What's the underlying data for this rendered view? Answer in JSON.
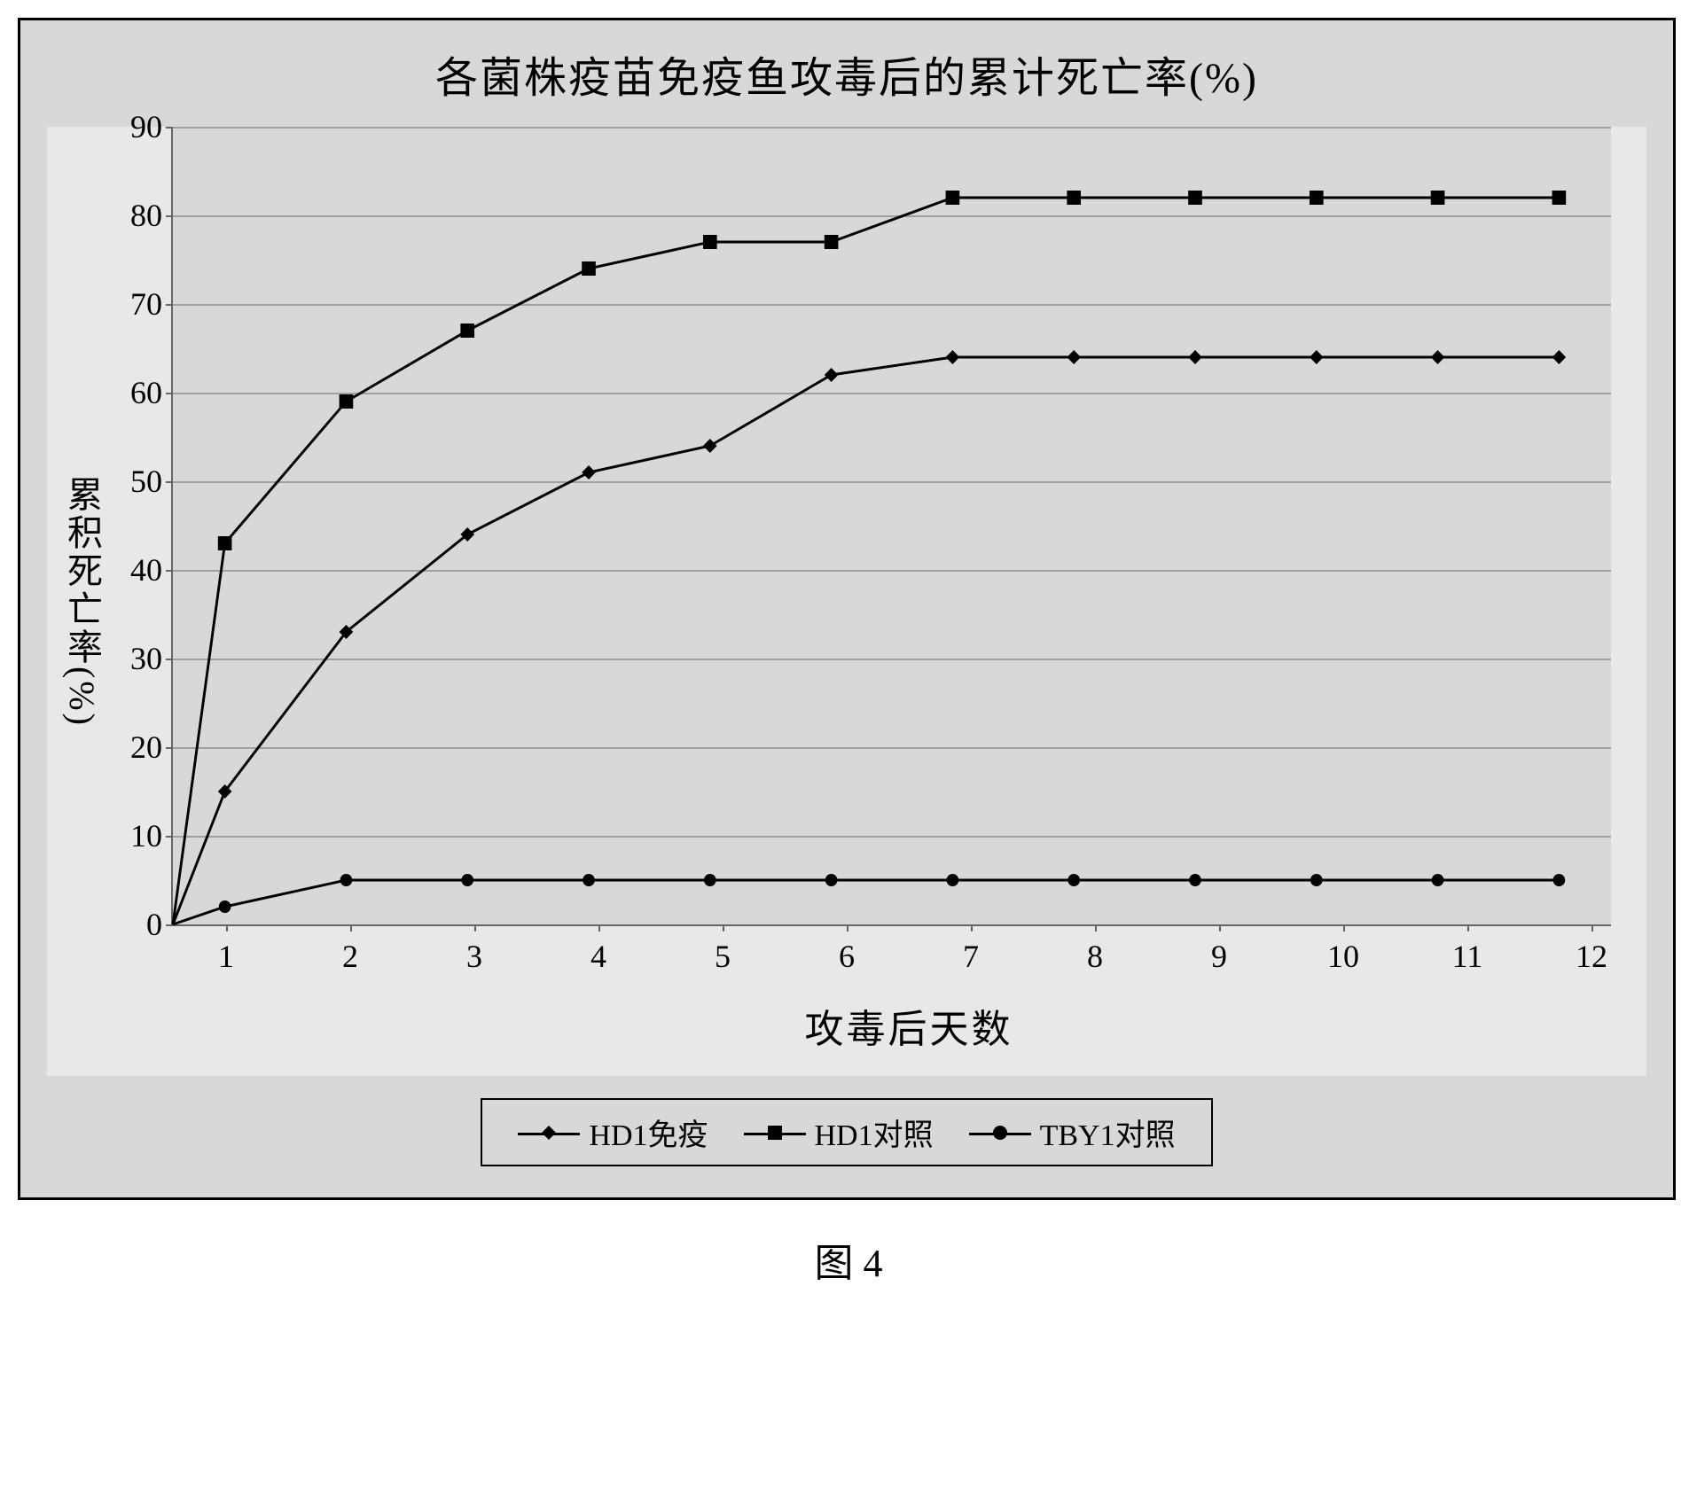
{
  "chart": {
    "type": "line",
    "title": "各菌株疫苗免疫鱼攻毒后的累计死亡率(%)",
    "x_axis_label": "攻毒后天数",
    "y_axis_label": "累积死亡率(%)",
    "ylim": [
      0,
      90
    ],
    "ytick_step": 10,
    "yticks": [
      0,
      10,
      20,
      30,
      40,
      50,
      60,
      70,
      80,
      90
    ],
    "xticks": [
      1,
      2,
      3,
      4,
      5,
      6,
      7,
      8,
      9,
      10,
      11,
      12
    ],
    "background_color": "#d8d8d8",
    "grid_color": "#a0a0a0",
    "axis_color": "#666666",
    "title_fontsize": 48,
    "label_fontsize": 40,
    "tick_fontsize": 36,
    "series": [
      {
        "name": "HD1免疫",
        "marker": "diamond",
        "color": "#000000",
        "line_width": 3,
        "marker_size": 16,
        "values": [
          15,
          33,
          44,
          51,
          54,
          62,
          64,
          64,
          64,
          64,
          64,
          64
        ]
      },
      {
        "name": "HD1对照",
        "marker": "square",
        "color": "#000000",
        "line_width": 3,
        "marker_size": 16,
        "values": [
          43,
          59,
          67,
          74,
          77,
          77,
          82,
          82,
          82,
          82,
          82,
          82
        ]
      },
      {
        "name": "TBY1对照",
        "marker": "circle",
        "color": "#000000",
        "line_width": 3,
        "marker_size": 14,
        "values": [
          2,
          5,
          5,
          5,
          5,
          5,
          5,
          5,
          5,
          5,
          5,
          5
        ]
      }
    ],
    "legend": {
      "items": [
        "HD1免疫",
        "HD1对照",
        "TBY1对照"
      ],
      "markers": [
        "diamond",
        "square",
        "circle"
      ]
    }
  },
  "figure_caption": "图 4"
}
